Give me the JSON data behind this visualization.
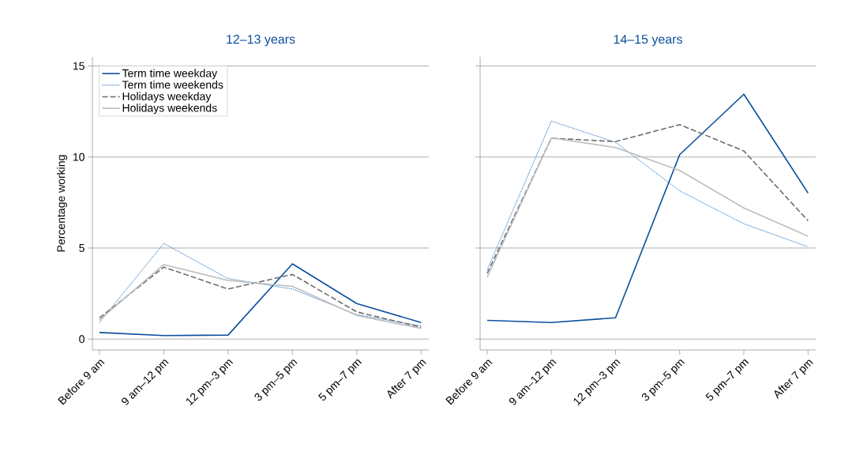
{
  "chart_data": [
    {
      "type": "line",
      "title": "12–13 years",
      "ylabel": "Percentage working",
      "categories": [
        "Before 9 am",
        "9 am–12 pm",
        "12 pm–3 pm",
        "3 pm–5 pm",
        "5 pm–7 pm",
        "After 7 pm"
      ],
      "series": [
        {
          "name": "Term time weekday",
          "color": "#0b4f9c",
          "line_style": "solid",
          "values": [
            0.36,
            0.19,
            0.22,
            4.13,
            1.95,
            0.91
          ]
        },
        {
          "name": "Term time weekends",
          "color": "#1f6fc0",
          "line_style": "dotted",
          "values": [
            0.91,
            5.25,
            3.32,
            2.75,
            1.34,
            0.72
          ]
        },
        {
          "name": "Holidays weekday",
          "color": "#6e6e6e",
          "line_style": "dashed",
          "values": [
            1.16,
            3.95,
            2.75,
            3.55,
            1.49,
            0.65
          ]
        },
        {
          "name": "Holidays weekends",
          "color": "#bdbdbd",
          "line_style": "solid",
          "values": [
            1.05,
            4.09,
            3.22,
            2.89,
            1.3,
            0.58
          ]
        }
      ],
      "ylim": [
        -0.6,
        15.5
      ],
      "yticks": [
        0,
        5,
        10,
        15
      ],
      "grid": "y",
      "legend": "top left",
      "marker": "none"
    },
    {
      "type": "line",
      "title": "14–15 years",
      "categories": [
        "Before 9 am",
        "9 am–12 pm",
        "12 pm–3 pm",
        "3 pm–5 pm",
        "5 pm–7 pm",
        "After 7 pm"
      ],
      "series": [
        {
          "color": "#0b4f9c",
          "line_style": "solid",
          "values": [
            1.03,
            0.91,
            1.17,
            10.13,
            13.45,
            8.02
          ]
        },
        {
          "color": "#1f6fc0",
          "line_style": "dotted",
          "values": [
            3.8,
            11.97,
            10.81,
            8.14,
            6.33,
            5.07
          ]
        },
        {
          "color": "#6e6e6e",
          "line_style": "dashed",
          "values": [
            3.61,
            11.03,
            10.85,
            11.78,
            10.33,
            6.5
          ]
        },
        {
          "color": "#bdbdbd",
          "line_style": "solid",
          "values": [
            3.4,
            11.05,
            10.52,
            9.26,
            7.2,
            5.65
          ]
        }
      ],
      "ylim": [
        -0.6,
        15.5
      ],
      "yticks": [
        0,
        5,
        10,
        15
      ],
      "grid": "y",
      "tick_labels": "x",
      "marker": "none"
    }
  ]
}
